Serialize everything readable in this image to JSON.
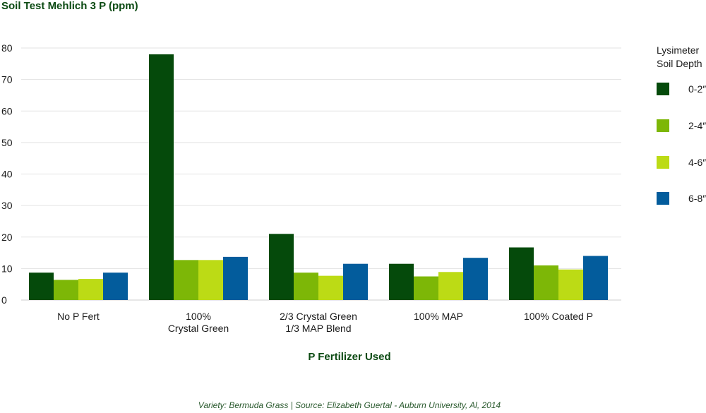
{
  "chart_data": {
    "type": "bar",
    "title": "Soil Test Mehlich 3 P (ppm)",
    "xlabel": "P Fertilizer Used",
    "ylabel": "",
    "ylim": [
      0,
      80
    ],
    "yticks": [
      0,
      10,
      20,
      30,
      40,
      50,
      60,
      70,
      80
    ],
    "grid": true,
    "categories": [
      [
        "No P Fert"
      ],
      [
        "100%",
        "Crystal Green"
      ],
      [
        "2/3 Crystal Green",
        "1/3 MAP Blend"
      ],
      [
        "100% MAP"
      ],
      [
        "100% Coated P"
      ]
    ],
    "legend_title": [
      "Lysimeter",
      "Soil Depth"
    ],
    "legend_position": "right",
    "series": [
      {
        "name": "0-2″",
        "color": "#054a0b",
        "values": [
          8.7,
          78,
          21,
          11.5,
          16.7
        ]
      },
      {
        "name": "2-4″",
        "color": "#7db707",
        "values": [
          6.4,
          12.7,
          8.7,
          7.5,
          11
        ]
      },
      {
        "name": "4-6″",
        "color": "#bcdb15",
        "values": [
          6.7,
          12.7,
          7.7,
          8.9,
          9.7
        ]
      },
      {
        "name": "6-8″",
        "color": "#035c9c",
        "values": [
          8.7,
          13.7,
          11.5,
          13.4,
          14
        ]
      }
    ]
  },
  "caption": "Variety: Bermuda Grass | Source: Elizabeth Guertal - Auburn University, Al, 2014"
}
